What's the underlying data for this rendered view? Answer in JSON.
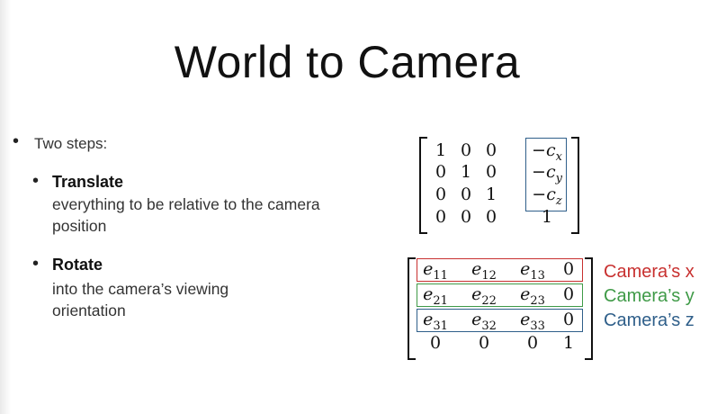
{
  "slide": {
    "title": "World to Camera"
  },
  "bullets": {
    "main": "Two steps:",
    "translate": {
      "heading": "Translate",
      "body": "everything to be relative to the camera position"
    },
    "rotate": {
      "heading": "Rotate",
      "body": "into the camera’s viewing orientation"
    }
  },
  "translation_matrix": {
    "rows": [
      [
        "1",
        "0",
        "0",
        "−c",
        "x"
      ],
      [
        "0",
        "1",
        "0",
        "−c",
        "y"
      ],
      [
        "0",
        "0",
        "1",
        "−c",
        "z"
      ],
      [
        "0",
        "0",
        "0",
        "1",
        ""
      ]
    ],
    "highlight_color": "#2f5f8a"
  },
  "rotation_matrix": {
    "rows": [
      [
        {
          "v": "e",
          "s": "11"
        },
        {
          "v": "e",
          "s": "12"
        },
        {
          "v": "e",
          "s": "13"
        },
        {
          "v": "0",
          "s": ""
        }
      ],
      [
        {
          "v": "e",
          "s": "21"
        },
        {
          "v": "e",
          "s": "22"
        },
        {
          "v": "e",
          "s": "23"
        },
        {
          "v": "0",
          "s": ""
        }
      ],
      [
        {
          "v": "e",
          "s": "31"
        },
        {
          "v": "e",
          "s": "32"
        },
        {
          "v": "e",
          "s": "33"
        },
        {
          "v": "0",
          "s": ""
        }
      ],
      [
        {
          "v": "0",
          "s": ""
        },
        {
          "v": "0",
          "s": ""
        },
        {
          "v": "0",
          "s": ""
        },
        {
          "v": "1",
          "s": ""
        }
      ]
    ]
  },
  "camera_axes": [
    {
      "label": "Camera’s x",
      "color": "#c8302f"
    },
    {
      "label": "Camera’s y",
      "color": "#3f9a47"
    },
    {
      "label": "Camera’s z",
      "color": "#2f5f8a"
    }
  ]
}
